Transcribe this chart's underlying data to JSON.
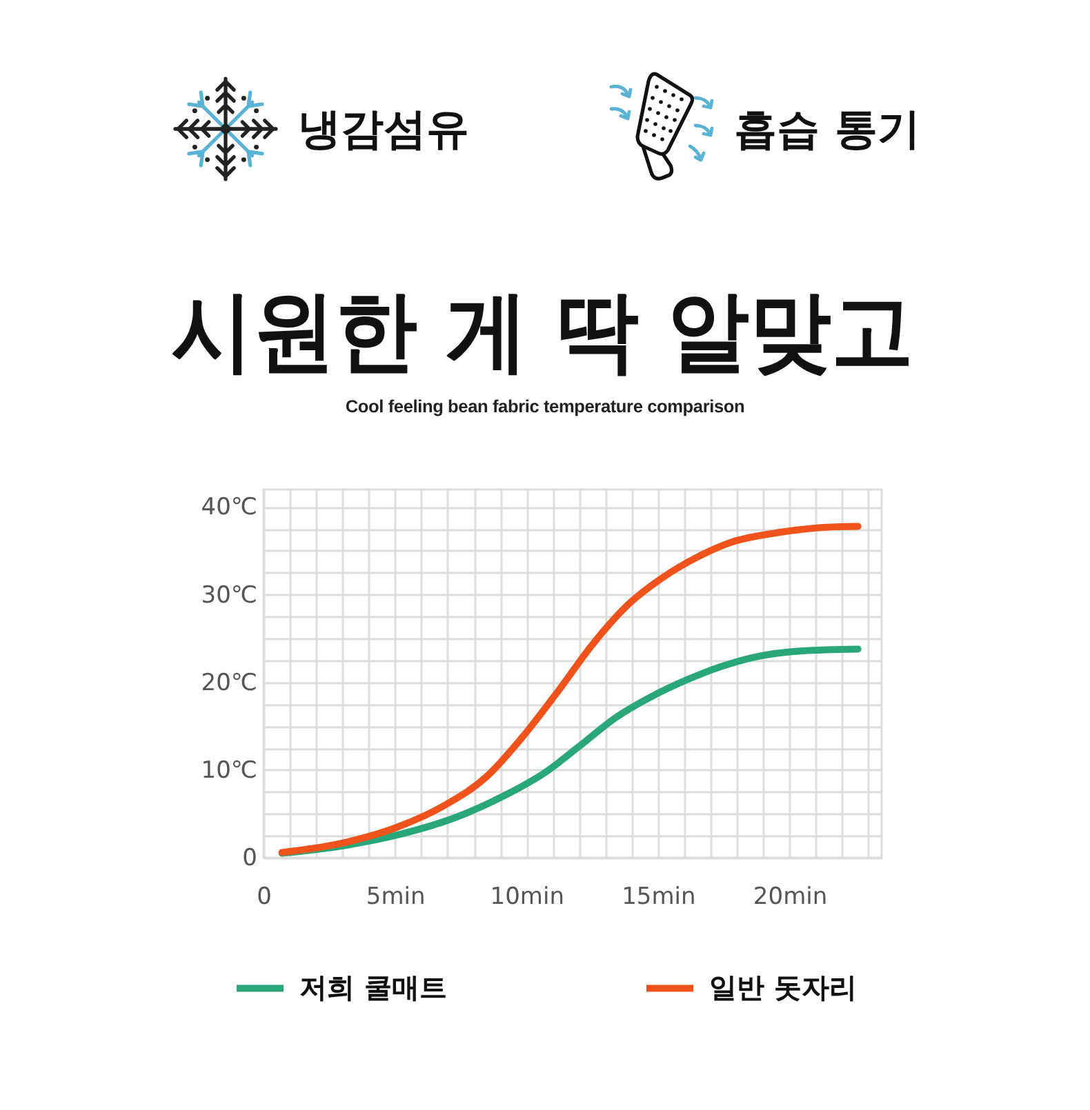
{
  "chart_data": {
    "type": "line",
    "title": "시원한 게 딱 알맞고",
    "subtitle": "Cool feeling bean fabric temperature comparison",
    "annotations": [
      "냉감섬유",
      "흡습 통기"
    ],
    "series": [
      {
        "name": "저희 쿨매트",
        "color": "#2aa779",
        "x": [
          0.7,
          2.9,
          5.1,
          7.4,
          9.1,
          10.7,
          12.0,
          13.4,
          14.7,
          16.1,
          17.4,
          18.7,
          20.5,
          22.6
        ],
        "values": [
          0.5,
          1.3,
          2.6,
          4.7,
          7.0,
          9.7,
          12.7,
          16.0,
          18.3,
          20.3,
          21.8,
          22.9,
          23.6,
          23.8
        ]
      },
      {
        "name": "일반 돗자리",
        "color": "#f0521c",
        "x": [
          0.7,
          2.9,
          5.1,
          6.9,
          8.5,
          9.8,
          11.2,
          12.5,
          13.8,
          15.2,
          16.5,
          17.8,
          19.6,
          21.4,
          22.6
        ],
        "values": [
          0.6,
          1.6,
          3.5,
          6.0,
          9.3,
          13.6,
          19.0,
          24.3,
          28.7,
          32.0,
          34.3,
          36.0,
          37.1,
          37.7,
          37.8
        ]
      }
    ],
    "xlim": [
      0,
      23.5
    ],
    "xticks": [
      0,
      {
        "value": 1,
        "label": null
      },
      {
        "value": 2,
        "label": null
      },
      {
        "value": 3,
        "label": null
      },
      {
        "value": 4,
        "label": null
      },
      {
        "value": 5,
        "label": "5min"
      },
      {
        "value": 6,
        "label": null
      },
      {
        "value": 7,
        "label": null
      },
      {
        "value": 8,
        "label": null
      },
      {
        "value": 9,
        "label": null
      },
      {
        "value": 10,
        "label": "10min"
      },
      {
        "value": 11,
        "label": null
      },
      {
        "value": 12,
        "label": null
      },
      {
        "value": 13,
        "label": null
      },
      {
        "value": 14,
        "label": null
      },
      {
        "value": 15,
        "label": "15min"
      },
      {
        "value": 16,
        "label": null
      },
      {
        "value": 17,
        "label": null
      },
      {
        "value": 18,
        "label": null
      },
      {
        "value": 19,
        "label": null
      },
      {
        "value": 20,
        "label": "20min"
      },
      {
        "value": 21,
        "label": null
      },
      {
        "value": 22,
        "label": null
      },
      {
        "value": 23,
        "label": null
      }
    ],
    "ylim": [
      0,
      42
    ],
    "yticks": [
      0,
      {
        "value": 2.5,
        "label": null
      },
      {
        "value": 5,
        "label": null
      },
      {
        "value": 7.5,
        "label": null
      },
      {
        "value": 10,
        "label": "10℃"
      },
      {
        "value": 12.5,
        "label": null
      },
      {
        "value": 15,
        "label": null
      },
      {
        "value": 17.5,
        "label": null
      },
      {
        "value": 20,
        "label": "20℃"
      },
      {
        "value": 22.5,
        "label": null
      },
      {
        "value": 25,
        "label": null
      },
      {
        "value": 27.5,
        "label": null
      },
      {
        "value": 30,
        "label": "30℃"
      },
      {
        "value": 32.5,
        "label": null
      },
      {
        "value": 35,
        "label": null
      },
      {
        "value": 37.5,
        "label": null
      },
      {
        "value": 40,
        "label": "40℃"
      }
    ],
    "grid": true,
    "legend": "bottom"
  }
}
